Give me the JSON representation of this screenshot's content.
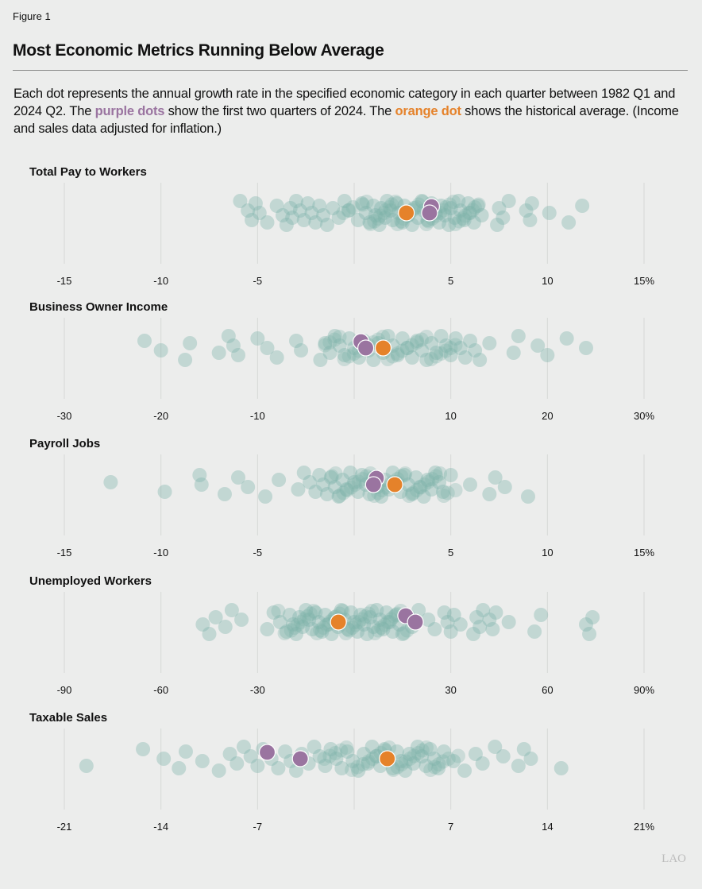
{
  "figure_label": "Figure 1",
  "title": "Most Economic Metrics Running Below Average",
  "description": {
    "part1": "Each dot represents the annual growth rate in the specified economic category in each quarter between 1982 Q1 and 2024 Q2. The ",
    "purple_text": "purple dots",
    "part2": " show the first two quarters of 2024. The ",
    "orange_text": "orange dot",
    "part3": " shows the historical average. (Income and sales data adjusted for inflation.)"
  },
  "logo_text": "LAO",
  "colors": {
    "quarters": "#7db3aa",
    "recent_2024": "#9a74a0",
    "average": "#e5822a",
    "grid": "#d6d8d6"
  },
  "chart_data": [
    {
      "type": "scatter",
      "title": "Total Pay to Workers",
      "xlim": [
        -15,
        15
      ],
      "ticks": [
        -15,
        -10,
        -5,
        0,
        5,
        10,
        15
      ],
      "tick_labels": [
        "-15",
        "-10",
        "-5",
        "",
        "5",
        "10",
        "15%"
      ],
      "quarters": [
        -5.9,
        -5.5,
        -5.3,
        -5.1,
        -4.9,
        -4.5,
        -4.0,
        -3.7,
        -3.5,
        -3.3,
        -3.2,
        -3.0,
        -2.8,
        -2.6,
        -2.4,
        -2.2,
        -2.0,
        -1.8,
        -1.6,
        -1.4,
        -1.1,
        -0.8,
        -0.5,
        -0.3,
        0.2,
        0.4,
        0.6,
        0.8,
        1.0,
        1.1,
        1.3,
        1.4,
        1.6,
        1.7,
        1.9,
        2.0,
        2.2,
        2.3,
        2.5,
        2.6,
        2.8,
        3.0,
        3.1,
        3.3,
        3.5,
        3.6,
        3.8,
        4.0,
        4.2,
        4.4,
        4.5,
        4.7,
        4.9,
        5.0,
        5.2,
        5.4,
        5.5,
        5.7,
        5.9,
        6.0,
        6.2,
        6.4,
        6.6,
        7.4,
        7.5,
        7.7,
        8.0,
        8.9,
        9.1,
        9.2,
        10.1,
        11.1,
        11.8
      ],
      "recent_2024": [
        4.0,
        3.9
      ],
      "average": 2.7
    },
    {
      "type": "scatter",
      "title": "Business Owner Income",
      "xlim": [
        -30,
        30
      ],
      "ticks": [
        -30,
        -20,
        -10,
        0,
        10,
        20,
        30
      ],
      "tick_labels": [
        "-30",
        "-20",
        "-10",
        "",
        "10",
        "20",
        "30%"
      ],
      "quarters": [
        -21.7,
        -20.0,
        -17.5,
        -17.0,
        -14.0,
        -13.0,
        -12.5,
        -12.0,
        -10.0,
        -9.0,
        -8.0,
        -6.0,
        -5.5,
        -3.5,
        -3.0,
        -2.5,
        -2.0,
        -1.5,
        -1.0,
        -0.5,
        0,
        0.5,
        1,
        1.5,
        2,
        2.5,
        3,
        3.5,
        4,
        4.5,
        5,
        5.5,
        6,
        6.5,
        7,
        7.5,
        8,
        8.5,
        9,
        9.5,
        10,
        10.5,
        11,
        11.5,
        12,
        12.5,
        13,
        14,
        16.5,
        17,
        19,
        20,
        22,
        24
      ],
      "recent_2024": [
        0.7,
        1.2
      ],
      "average": 3.0
    },
    {
      "type": "scatter",
      "title": "Payroll Jobs",
      "xlim": [
        -15,
        15
      ],
      "ticks": [
        -15,
        -10,
        -5,
        0,
        5,
        10,
        15
      ],
      "tick_labels": [
        "-15",
        "-10",
        "-5",
        "",
        "5",
        "10",
        "15%"
      ],
      "quarters": [
        -12.6,
        -9.8,
        -8.0,
        -7.9,
        -6.7,
        -6.0,
        -5.5,
        -4.6,
        -3.9,
        -2.9,
        -2.6,
        -2.3,
        -2.0,
        -1.8,
        -1.6,
        -1.4,
        -1.2,
        -1.0,
        -0.8,
        -0.6,
        -0.4,
        -0.2,
        0,
        0.2,
        0.4,
        0.6,
        0.8,
        1.0,
        1.2,
        1.4,
        1.6,
        1.8,
        2.0,
        2.2,
        2.4,
        2.6,
        2.8,
        3.0,
        3.2,
        3.4,
        3.6,
        3.8,
        4.0,
        4.2,
        4.4,
        4.6,
        5.0,
        6.0,
        7.0,
        7.3,
        7.8,
        9.0
      ],
      "recent_2024": [
        1.15,
        1.0
      ],
      "average": 2.1
    },
    {
      "type": "scatter",
      "title": "Unemployed Workers",
      "xlim": [
        -90,
        90
      ],
      "ticks": [
        -90,
        -60,
        -30,
        0,
        30,
        60,
        90
      ],
      "tick_labels": [
        "-90",
        "-60",
        "-30",
        "",
        "30",
        "60",
        "90%"
      ],
      "quarters": [
        -47,
        -45,
        -43,
        -40,
        -38,
        -35,
        -27,
        -25,
        -23,
        -21,
        -20,
        -19,
        -18,
        -17,
        -16,
        -15,
        -14,
        -13,
        -12,
        -11,
        -10,
        -9,
        -8,
        -7,
        -6,
        -5,
        -4,
        -3,
        -2,
        -1,
        0,
        1,
        2,
        3,
        4,
        5,
        6,
        7,
        8,
        9,
        10,
        11,
        12,
        13,
        14,
        15,
        17,
        18,
        20,
        23,
        25,
        28,
        29,
        30,
        31,
        33,
        37,
        38,
        39,
        40,
        42,
        43,
        44,
        48,
        56,
        58,
        72,
        73,
        74
      ],
      "recent_2024": [
        16,
        19
      ],
      "average": -4.9
    },
    {
      "type": "scatter",
      "title": "Taxable Sales",
      "xlim": [
        -21,
        21
      ],
      "ticks": [
        -21,
        -14,
        -7,
        0,
        7,
        14,
        21
      ],
      "tick_labels": [
        "-21",
        "-14",
        "-7",
        "",
        "7",
        "14",
        "21%"
      ],
      "quarters": [
        -19.4,
        -15.3,
        -13.8,
        -12.7,
        -12.2,
        -11.0,
        -9.8,
        -9.0,
        -8.5,
        -8.0,
        -7.5,
        -7.0,
        -6.6,
        -6.0,
        -5.5,
        -5.0,
        -4.6,
        -4.2,
        -3.8,
        -3.3,
        -2.9,
        -2.5,
        -2.1,
        -1.7,
        -1.3,
        -0.9,
        -0.5,
        -0.1,
        0.3,
        0.7,
        1.0,
        1.3,
        1.6,
        1.9,
        2.2,
        2.5,
        2.8,
        3.1,
        3.4,
        3.7,
        4.0,
        4.3,
        4.6,
        4.9,
        5.2,
        5.5,
        5.8,
        6.1,
        6.5,
        7.2,
        8.0,
        8.8,
        9.3,
        10.2,
        10.8,
        11.9,
        12.3,
        12.8,
        15.0
      ],
      "recent_2024": [
        -6.3,
        -3.9
      ],
      "average": 2.4
    }
  ]
}
